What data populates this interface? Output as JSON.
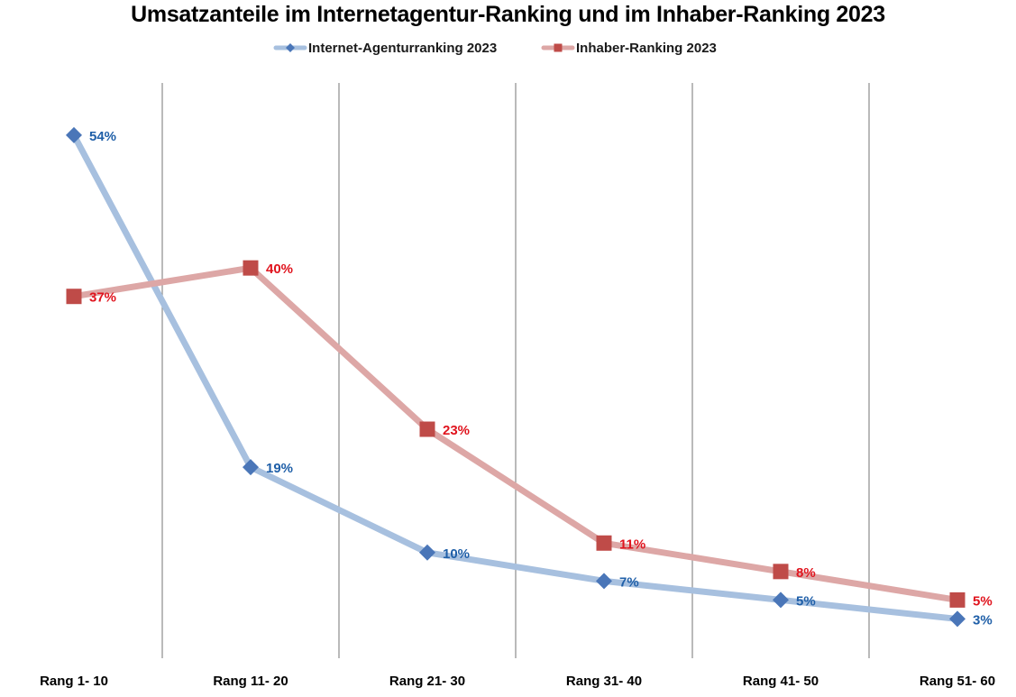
{
  "chart_data": {
    "type": "line",
    "title": "Umsatzanteile im Internetagentur-Ranking und im Inhaber-Ranking 2023",
    "categories": [
      "Rang 1- 10",
      "Rang 11- 20",
      "Rang 21- 30",
      "Rang 31- 40",
      "Rang 41- 50",
      "Rang 51- 60"
    ],
    "series": [
      {
        "name": "Internet-Agenturranking 2023",
        "values": [
          54,
          19,
          10,
          7,
          5,
          3
        ],
        "labels": [
          "54%",
          "19%",
          "10%",
          "7%",
          "5%",
          "3%"
        ],
        "line_color": "#a7c0df",
        "marker_color": "#4a76b8",
        "label_color": "#1f5fa8",
        "marker": "diamond"
      },
      {
        "name": "Inhaber-Ranking 2023",
        "values": [
          37,
          40,
          23,
          11,
          8,
          5
        ],
        "labels": [
          "37%",
          "40%",
          "23%",
          "11%",
          "8%",
          "5%"
        ],
        "line_color": "#dda7a6",
        "marker_color": "#bf4b48",
        "label_color": "#e0141e",
        "marker": "square"
      }
    ],
    "ylim": [
      0,
      59.5
    ],
    "xlabel": "",
    "ylabel": "",
    "grid": "vertical",
    "grid_color": "#8c8c8c",
    "legend_position": "top-center"
  }
}
